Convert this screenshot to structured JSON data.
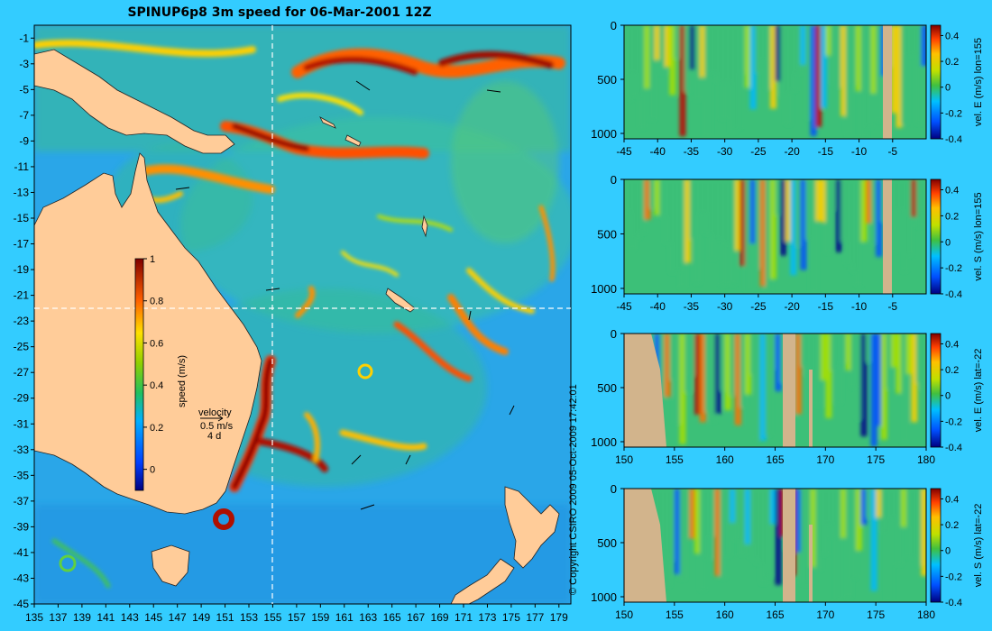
{
  "title": "SPINUP6p8 3m speed for 06-Mar-2001 12Z",
  "copyright": "© Copyright CSIRO 2009   05-Oct-2009 17:42:01",
  "colors": {
    "background": "#33ccff",
    "land": "#ffcc99",
    "section_land": "#d2b48c",
    "marker_line": "#ffffff"
  },
  "chart_data": [
    {
      "type": "heatmap",
      "name": "map",
      "title": "SPINUP6p8 3m speed for 06-Mar-2001 12Z",
      "xlim": [
        135,
        180
      ],
      "ylim": [
        -45,
        0
      ],
      "x_ticks": [
        "135",
        "137",
        "139",
        "141",
        "143",
        "145",
        "147",
        "149",
        "151",
        "153",
        "155",
        "157",
        "159",
        "161",
        "163",
        "165",
        "167",
        "169",
        "171",
        "173",
        "175",
        "177",
        "179"
      ],
      "y_ticks": [
        "-1",
        "-3",
        "-5",
        "-7",
        "-9",
        "-11",
        "-13",
        "-15",
        "-17",
        "-19",
        "-21",
        "-23",
        "-25",
        "-27",
        "-29",
        "-31",
        "-33",
        "-35",
        "-37",
        "-39",
        "-41",
        "-43",
        "-45"
      ],
      "colorbar": {
        "label": "speed (m/s)",
        "range": [
          -0.1,
          1
        ],
        "ticks": [
          "1",
          "0.8",
          "0.6",
          "0.4",
          "0.2",
          "0"
        ]
      },
      "velocity_legend": {
        "line1": "velocity",
        "line2": "0.5 m/s",
        "line3": "4 d"
      },
      "crosshair": {
        "lon": 155,
        "lat": -22
      }
    },
    {
      "type": "heatmap",
      "name": "section-1",
      "xlim": [
        -45,
        0
      ],
      "x_ticks": [
        "-45",
        "-40",
        "-35",
        "-30",
        "-25",
        "-20",
        "-15",
        "-10",
        "-5"
      ],
      "y_ticks": [
        "0",
        "500",
        "1000"
      ],
      "ylim": [
        1050,
        0
      ],
      "colorbar": {
        "label": "vel. E (m/s) lon=155",
        "range": [
          -0.4,
          0.48
        ],
        "ticks": [
          "0.4",
          "0.2",
          "0",
          "-0.2",
          "-0.4"
        ]
      }
    },
    {
      "type": "heatmap",
      "name": "section-2",
      "xlim": [
        -45,
        0
      ],
      "x_ticks": [
        "-45",
        "-40",
        "-35",
        "-30",
        "-25",
        "-20",
        "-15",
        "-10",
        "-5"
      ],
      "y_ticks": [
        "0",
        "500",
        "1000"
      ],
      "ylim": [
        1050,
        0
      ],
      "colorbar": {
        "label": "vel. S (m/s) lon=155",
        "range": [
          -0.4,
          0.48
        ],
        "ticks": [
          "0.4",
          "0.2",
          "0",
          "-0.2",
          "-0.4"
        ]
      }
    },
    {
      "type": "heatmap",
      "name": "section-3",
      "xlim": [
        150,
        180
      ],
      "x_ticks": [
        "150",
        "155",
        "160",
        "165",
        "170",
        "175",
        "180"
      ],
      "y_ticks": [
        "0",
        "500",
        "1000"
      ],
      "ylim": [
        1050,
        0
      ],
      "colorbar": {
        "label": "vel. E (m/s) lat=-22",
        "range": [
          -0.4,
          0.48
        ],
        "ticks": [
          "0.4",
          "0.2",
          "0",
          "-0.2",
          "-0.4"
        ]
      }
    },
    {
      "type": "heatmap",
      "name": "section-4",
      "xlim": [
        150,
        180
      ],
      "x_ticks": [
        "150",
        "155",
        "160",
        "165",
        "170",
        "175",
        "180"
      ],
      "y_ticks": [
        "0",
        "500",
        "1000"
      ],
      "ylim": [
        1050,
        0
      ],
      "colorbar": {
        "label": "vel. S (m/s) lat=-22",
        "range": [
          -0.4,
          0.48
        ],
        "ticks": [
          "0.4",
          "0.2",
          "0",
          "-0.2",
          "-0.4"
        ]
      }
    }
  ]
}
